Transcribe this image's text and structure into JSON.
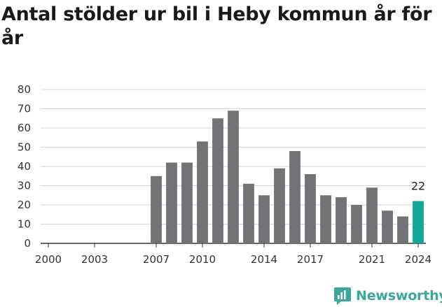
{
  "chart_data": {
    "type": "bar",
    "title": "Antal stölder ur bil i Heby kommun år för år",
    "categories": [
      "2000",
      "2001",
      "2002",
      "2003",
      "2004",
      "2005",
      "2006",
      "2007",
      "2008",
      "2009",
      "2010",
      "2011",
      "2012",
      "2013",
      "2014",
      "2015",
      "2016",
      "2017",
      "2018",
      "2019",
      "2020",
      "2021",
      "2022",
      "2023",
      "2024"
    ],
    "values": [
      null,
      null,
      null,
      null,
      null,
      null,
      null,
      35,
      42,
      42,
      53,
      65,
      69,
      31,
      25,
      39,
      48,
      36,
      25,
      24,
      20,
      29,
      17,
      14,
      22
    ],
    "x_tick_labels": [
      "2000",
      "2003",
      "2007",
      "2010",
      "2014",
      "2017",
      "2021",
      "2024"
    ],
    "y_ticks": [
      0,
      10,
      20,
      30,
      40,
      50,
      60,
      70,
      80
    ],
    "ylim": [
      0,
      80
    ],
    "grid": true,
    "highlight": {
      "category": "2024",
      "label": "22"
    },
    "colors": {
      "bar": "#737377",
      "highlight": "#11a89a",
      "grid": "#d6d6d6"
    }
  },
  "branding": {
    "logo_text": "Newsworthy",
    "logo_icon": "newsworthy-logo-icon"
  }
}
